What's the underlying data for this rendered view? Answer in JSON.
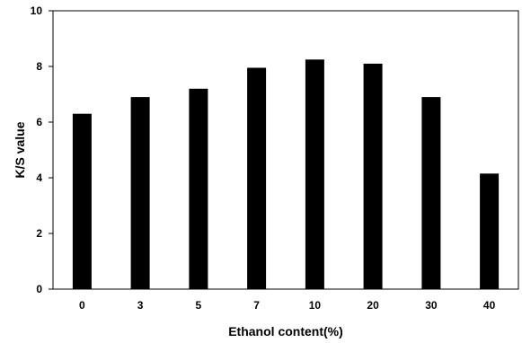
{
  "chart_data": {
    "type": "bar",
    "title": "",
    "xlabel": "Ethanol  content(%)",
    "ylabel": "K/S value",
    "categories": [
      "0",
      "3",
      "5",
      "7",
      "10",
      "20",
      "30",
      "40"
    ],
    "values": [
      6.3,
      6.9,
      7.2,
      7.95,
      8.25,
      8.1,
      6.9,
      4.15
    ],
    "ylim": [
      0,
      10
    ],
    "yticks": [
      "0",
      "2",
      "4",
      "6",
      "8",
      "10"
    ],
    "bar_color": "#000000",
    "grid": false,
    "legend": "none"
  }
}
